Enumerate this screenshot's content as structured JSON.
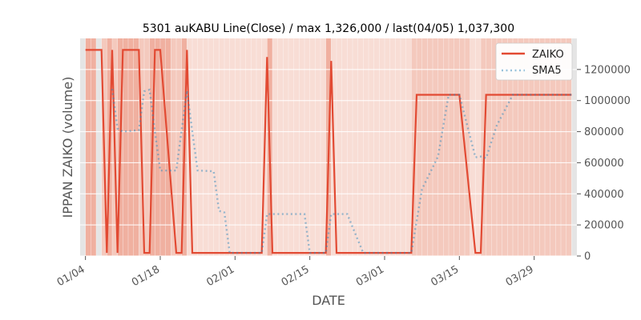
{
  "chart_data": {
    "type": "line",
    "title": "5301 auKABU Line(Close) / max 1,326,000 / last(04/05) 1,037,300",
    "xlabel": "DATE",
    "ylabel": "IPPAN ZAIKO (volume)",
    "ylim": [
      0,
      1400000
    ],
    "xlim": [
      "2019-01-03",
      "2019-04-06"
    ],
    "x_ticks": [
      "01/04",
      "01/18",
      "02/01",
      "02/15",
      "03/01",
      "03/15",
      "03/29"
    ],
    "y_ticks": [
      "0",
      "200000",
      "400000",
      "600000",
      "800000",
      "1000000",
      "1200000"
    ],
    "legend_position": "top-right",
    "grid": true,
    "colors": {
      "plot_background": "#e5e5e5",
      "zaiko": "#e24a33",
      "sma5": "#348abd",
      "shade_strong": "#f0b0a0",
      "shade_mid": "#f4c9bd",
      "shade_light": "#f8ddd5"
    },
    "shaded_ranges": [
      {
        "start": "2019-01-04",
        "end": "2019-01-06",
        "level": "strong"
      },
      {
        "start": "2019-01-07",
        "end": "2019-01-08",
        "level": "mid"
      },
      {
        "start": "2019-01-08",
        "end": "2019-01-09",
        "level": "strong"
      },
      {
        "start": "2019-01-09",
        "end": "2019-01-10",
        "level": "mid"
      },
      {
        "start": "2019-01-10",
        "end": "2019-01-14",
        "level": "strong"
      },
      {
        "start": "2019-01-14",
        "end": "2019-01-16",
        "level": "mid"
      },
      {
        "start": "2019-01-16",
        "end": "2019-01-20",
        "level": "strong"
      },
      {
        "start": "2019-01-20",
        "end": "2019-01-22",
        "level": "mid"
      },
      {
        "start": "2019-01-22",
        "end": "2019-01-23",
        "level": "strong"
      },
      {
        "start": "2019-01-23",
        "end": "2019-02-07",
        "level": "light"
      },
      {
        "start": "2019-02-07",
        "end": "2019-02-08",
        "level": "strong"
      },
      {
        "start": "2019-02-08",
        "end": "2019-02-18",
        "level": "light"
      },
      {
        "start": "2019-02-18",
        "end": "2019-02-19",
        "level": "strong"
      },
      {
        "start": "2019-02-19",
        "end": "2019-03-06",
        "level": "light"
      },
      {
        "start": "2019-03-06",
        "end": "2019-03-17",
        "level": "mid"
      },
      {
        "start": "2019-03-17",
        "end": "2019-03-19",
        "level": "light"
      },
      {
        "start": "2019-03-19",
        "end": "2019-04-05",
        "level": "mid"
      }
    ],
    "series": [
      {
        "name": "ZAIKO",
        "style": "solid",
        "x": [
          "2019-01-04",
          "2019-01-07",
          "2019-01-08",
          "2019-01-09",
          "2019-01-10",
          "2019-01-11",
          "2019-01-14",
          "2019-01-15",
          "2019-01-16",
          "2019-01-17",
          "2019-01-18",
          "2019-01-21",
          "2019-01-22",
          "2019-01-23",
          "2019-01-24",
          "2019-01-25",
          "2019-01-28",
          "2019-01-29",
          "2019-01-30",
          "2019-01-31",
          "2019-02-01",
          "2019-02-04",
          "2019-02-05",
          "2019-02-06",
          "2019-02-07",
          "2019-02-08",
          "2019-02-12",
          "2019-02-13",
          "2019-02-14",
          "2019-02-15",
          "2019-02-18",
          "2019-02-19",
          "2019-02-20",
          "2019-02-21",
          "2019-02-22",
          "2019-02-25",
          "2019-02-26",
          "2019-02-27",
          "2019-02-28",
          "2019-03-01",
          "2019-03-04",
          "2019-03-05",
          "2019-03-06",
          "2019-03-07",
          "2019-03-08",
          "2019-03-11",
          "2019-03-12",
          "2019-03-13",
          "2019-03-14",
          "2019-03-15",
          "2019-03-18",
          "2019-03-19",
          "2019-03-20",
          "2019-03-22",
          "2019-03-25",
          "2019-03-26",
          "2019-03-27",
          "2019-03-28",
          "2019-03-29",
          "2019-04-01",
          "2019-04-02",
          "2019-04-03",
          "2019-04-04",
          "2019-04-05"
        ],
        "values": [
          1326000,
          1326000,
          20000,
          1326000,
          20000,
          1326000,
          1326000,
          20000,
          20000,
          1326000,
          1326000,
          20000,
          20000,
          1326000,
          20000,
          20000,
          20000,
          20000,
          20000,
          20000,
          20000,
          20000,
          20000,
          20000,
          1280000,
          20000,
          20000,
          20000,
          20000,
          20000,
          20000,
          1255000,
          20000,
          20000,
          20000,
          20000,
          20000,
          20000,
          20000,
          20000,
          20000,
          20000,
          20000,
          1037300,
          1037300,
          1037300,
          1037300,
          1037300,
          1037300,
          1037300,
          20000,
          20000,
          1037300,
          1037300,
          1037300,
          1037300,
          1037300,
          1037300,
          1037300,
          1037300,
          1037300,
          1037300,
          1037300,
          1037300
        ]
      },
      {
        "name": "SMA5",
        "style": "dotted",
        "x": [
          "2019-01-09",
          "2019-01-10",
          "2019-01-11",
          "2019-01-14",
          "2019-01-15",
          "2019-01-16",
          "2019-01-17",
          "2019-01-18",
          "2019-01-21",
          "2019-01-22",
          "2019-01-23",
          "2019-01-24",
          "2019-01-25",
          "2019-01-28",
          "2019-01-29",
          "2019-01-30",
          "2019-01-31",
          "2019-02-01",
          "2019-02-04",
          "2019-02-05",
          "2019-02-06",
          "2019-02-07",
          "2019-02-08",
          "2019-02-12",
          "2019-02-13",
          "2019-02-14",
          "2019-02-15",
          "2019-02-18",
          "2019-02-19",
          "2019-02-20",
          "2019-02-21",
          "2019-02-22",
          "2019-02-25",
          "2019-02-26",
          "2019-02-27",
          "2019-02-28",
          "2019-03-01",
          "2019-03-04",
          "2019-03-05",
          "2019-03-06",
          "2019-03-07",
          "2019-03-08",
          "2019-03-11",
          "2019-03-12",
          "2019-03-13",
          "2019-03-14",
          "2019-03-15",
          "2019-03-18",
          "2019-03-19",
          "2019-03-20",
          "2019-03-22",
          "2019-03-25",
          "2019-03-26",
          "2019-03-27",
          "2019-03-28",
          "2019-03-29",
          "2019-04-01",
          "2019-04-02",
          "2019-04-03",
          "2019-04-04",
          "2019-04-05"
        ],
        "values": [
          1075000,
          820000,
          800000,
          810000,
          1060000,
          1070000,
          800000,
          550000,
          550000,
          810000,
          1065000,
          800000,
          550000,
          545000,
          290000,
          280000,
          20000,
          20000,
          20000,
          20000,
          20000,
          270000,
          270000,
          270000,
          270000,
          270000,
          20000,
          20000,
          270000,
          270000,
          270000,
          270000,
          20000,
          20000,
          20000,
          20000,
          20000,
          20000,
          20000,
          20000,
          225000,
          430000,
          640000,
          840000,
          1037300,
          1037300,
          1037300,
          635000,
          640000,
          630000,
          840000,
          1037300,
          1037300,
          1037300,
          1037300,
          1037300,
          1037300,
          1037300,
          1037300,
          1037300,
          1037300
        ]
      }
    ]
  }
}
